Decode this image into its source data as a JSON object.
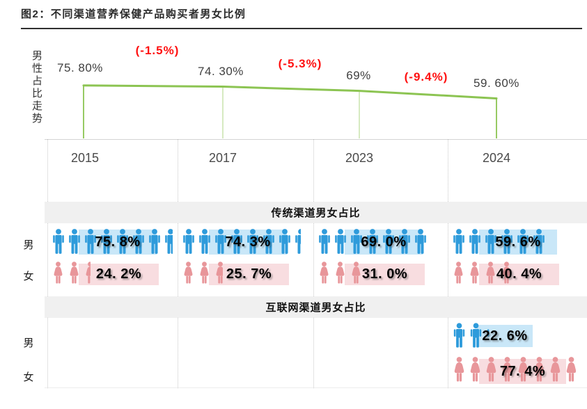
{
  "title": "图2：不同渠道营养保健产品购买者男女比例",
  "axis_label": "男性占比走势",
  "colors": {
    "male": "#2E9BDB",
    "male_highlight": "#C9E7F8",
    "female": "#E8969A",
    "female_highlight": "#F8DDE0",
    "trend_line": "#8CC452",
    "annotation_red": "#FF1111",
    "band_gray": "#F0F0F0"
  },
  "chart_data": {
    "type": "line",
    "title": "图2：不同渠道营养保健产品购买者男女比例",
    "ylabel": "男性占比走势",
    "x_categories": [
      "2015",
      "2017",
      "2023",
      "2024"
    ],
    "series": [
      {
        "name": "男性占比走势",
        "values": [
          75.8,
          74.3,
          69.0,
          59.6
        ],
        "point_labels": [
          "75. 80%",
          "74. 30%",
          "69%",
          "59. 60%"
        ]
      }
    ],
    "annotations": [
      {
        "text": "(-1.5%)",
        "between": [
          "2015",
          "2017"
        ]
      },
      {
        "text": "(-5.3%)",
        "between": [
          "2017",
          "2023"
        ]
      },
      {
        "text": "(-9.4%)",
        "between": [
          "2023",
          "2024"
        ]
      }
    ],
    "legend": "off",
    "grid": "dotted-column-separators",
    "tables": [
      {
        "header": "传统渠道男女占比",
        "rows": [
          {
            "label": "男",
            "gender": "male",
            "values": [
              75.8,
              74.3,
              69.0,
              59.6
            ],
            "labels": [
              "75. 8%",
              "74. 3%",
              "69. 0%",
              "59. 6%"
            ]
          },
          {
            "label": "女",
            "gender": "female",
            "values": [
              24.2,
              25.7,
              31.0,
              40.4
            ],
            "labels": [
              "24. 2%",
              "25. 7%",
              "31. 0%",
              "40. 4%"
            ]
          }
        ]
      },
      {
        "header": "互联网渠道男女占比",
        "rows": [
          {
            "label": "男",
            "gender": "male",
            "values": [
              null,
              null,
              null,
              22.6
            ],
            "labels": [
              null,
              null,
              null,
              "22. 6%"
            ]
          },
          {
            "label": "女",
            "gender": "female",
            "values": [
              null,
              null,
              null,
              77.4
            ],
            "labels": [
              null,
              null,
              null,
              "77. 4%"
            ]
          }
        ]
      }
    ]
  }
}
